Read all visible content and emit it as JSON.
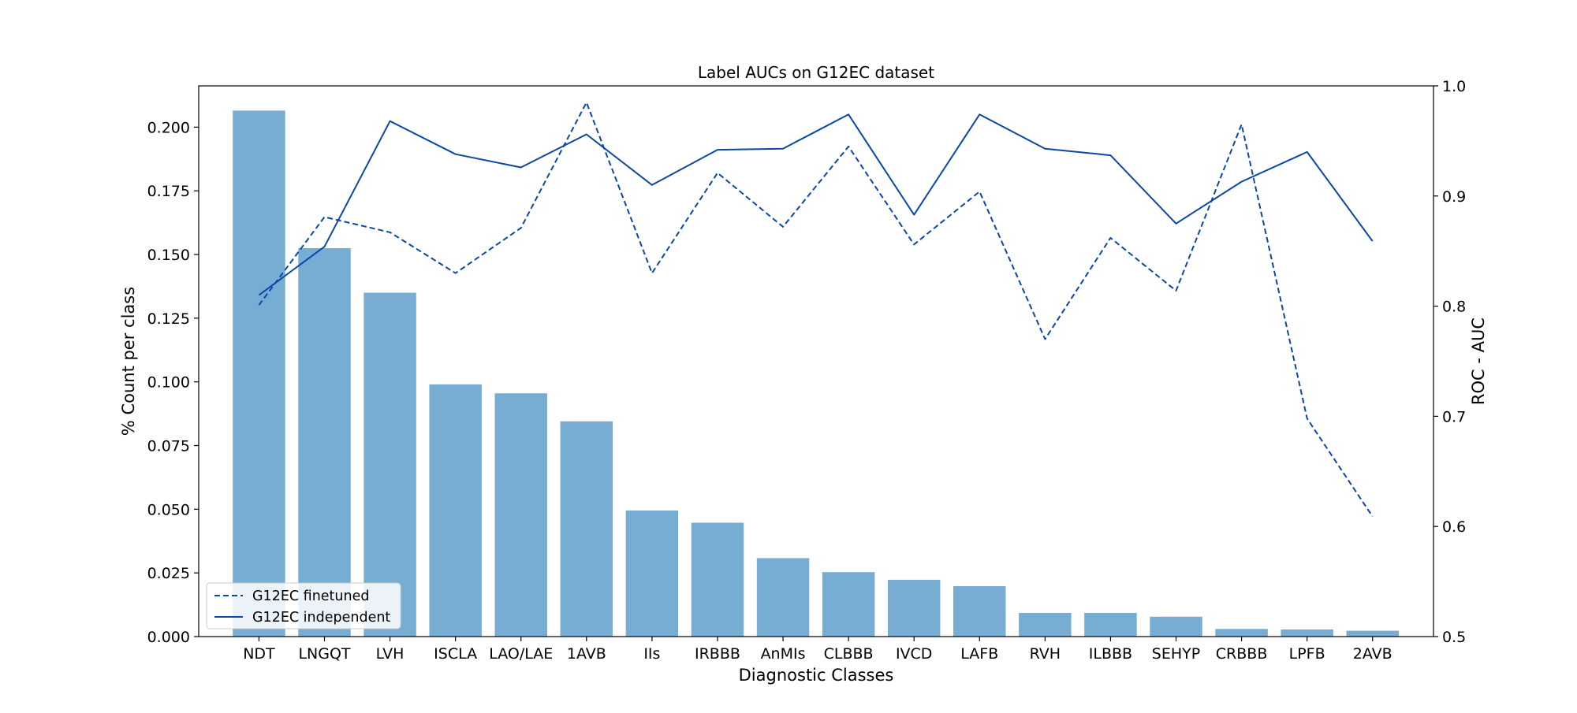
{
  "chart_data": {
    "type": "bar",
    "title": "Label AUCs on G12EC dataset",
    "xlabel": "Diagnostic Classes",
    "ylabel": "% Count per class",
    "y2label": "ROC - AUC",
    "categories": [
      "NDT",
      "LNGQT",
      "LVH",
      "ISCLA",
      "LAO/LAE",
      "1AVB",
      "IIs",
      "IRBBB",
      "AnMIs",
      "CLBBB",
      "IVCD",
      "LAFB",
      "RVH",
      "ILBBB",
      "SEHYP",
      "CRBBB",
      "LPFB",
      "2AVB"
    ],
    "ylim": [
      0,
      0.2162
    ],
    "y2lim": [
      0.5,
      1.0
    ],
    "yticks": [
      "0.000",
      "0.025",
      "0.050",
      "0.075",
      "0.100",
      "0.125",
      "0.150",
      "0.175",
      "0.200"
    ],
    "y2ticks": [
      "0.5",
      "0.6",
      "0.7",
      "0.8",
      "0.9",
      "1.0"
    ],
    "bar_color": "#77acd3",
    "line_color": "#0a47a9",
    "legend_position": "lower-left",
    "grid": false,
    "series": [
      {
        "kind": "bar",
        "axis": "left",
        "values": [
          0.2065,
          0.1525,
          0.135,
          0.099,
          0.0955,
          0.0845,
          0.0495,
          0.0447,
          0.0308,
          0.0253,
          0.0223,
          0.0198,
          0.0093,
          0.0093,
          0.0078,
          0.003,
          0.0028,
          0.0023
        ]
      },
      {
        "kind": "line",
        "axis": "right",
        "style": "dashed",
        "name": "G12EC finetuned",
        "values": [
          0.801,
          0.881,
          0.867,
          0.83,
          0.871,
          0.985,
          0.83,
          0.921,
          0.872,
          0.945,
          0.856,
          0.904,
          0.77,
          0.862,
          0.814,
          0.965,
          0.698,
          0.609
        ]
      },
      {
        "kind": "line",
        "axis": "right",
        "style": "solid",
        "name": "G12EC independent",
        "values": [
          0.81,
          0.854,
          0.968,
          0.938,
          0.926,
          0.956,
          0.91,
          0.942,
          0.943,
          0.974,
          0.883,
          0.974,
          0.943,
          0.937,
          0.875,
          0.913,
          0.94,
          0.859
        ]
      }
    ]
  }
}
